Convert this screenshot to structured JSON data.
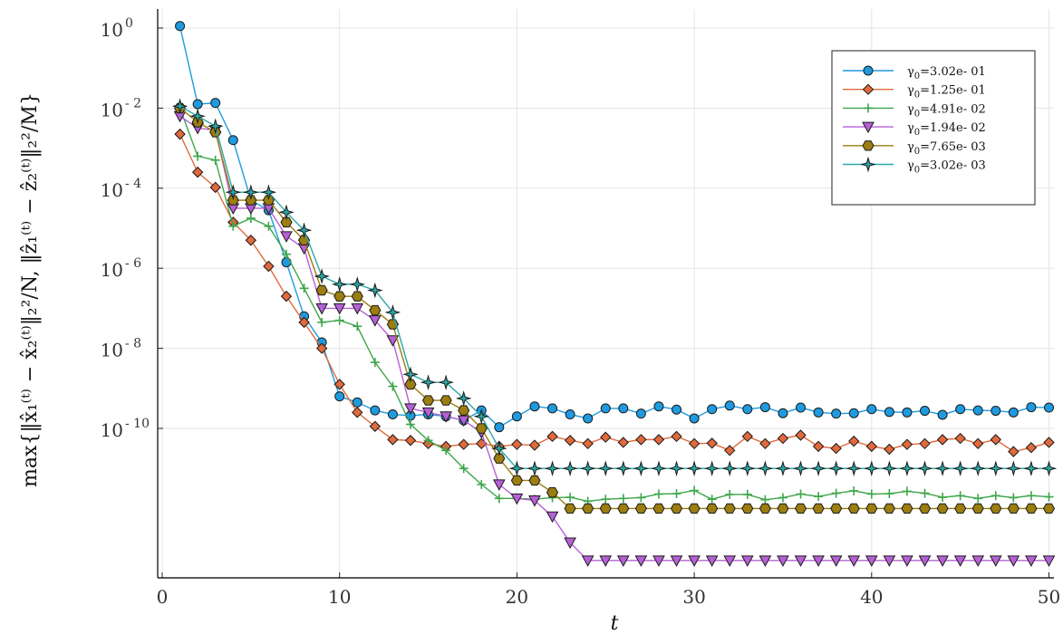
{
  "chart_data": {
    "type": "scatter",
    "xlabel": "t",
    "ylabel": "max{‖x̂₁⁽ᵗ⁾ − x̂₂⁽ᵗ⁾‖₂²/N, ‖ẑ₁⁽ᵗ⁾ − ẑ₂⁽ᵗ⁾‖₂²/M}",
    "xlim": [
      0,
      51
    ],
    "ylim_log10": [
      -14.5,
      0.5
    ],
    "y_scale": "log",
    "grid": true,
    "legend_position": "top-right",
    "x_ticks": [
      0,
      10,
      20,
      30,
      40,
      50
    ],
    "y_ticks": [
      {
        "base": "10",
        "exp": "0",
        "log10": 0
      },
      {
        "base": "10",
        "exp": "- 2",
        "log10": -2
      },
      {
        "base": "10",
        "exp": "- 4",
        "log10": -4
      },
      {
        "base": "10",
        "exp": "- 6",
        "log10": -6
      },
      {
        "base": "10",
        "exp": "- 8",
        "log10": -8
      },
      {
        "base": "10",
        "exp": "- 10",
        "log10": -10
      }
    ],
    "x": [
      1,
      2,
      3,
      4,
      5,
      6,
      7,
      8,
      9,
      10,
      11,
      12,
      13,
      14,
      15,
      16,
      17,
      18,
      19,
      20,
      21,
      22,
      23,
      24,
      25,
      26,
      27,
      28,
      29,
      30,
      31,
      32,
      33,
      34,
      35,
      36,
      37,
      38,
      39,
      40,
      41,
      42,
      43,
      44,
      45,
      46,
      47,
      48,
      49,
      50
    ],
    "series": [
      {
        "name": "γ₀=3.02e- 01",
        "color": "#1e9be0",
        "marker": "circle",
        "log10_values": [
          0.05,
          -1.9,
          -1.87,
          -2.8,
          -4.3,
          -4.55,
          -5.85,
          -7.2,
          -7.85,
          -9.2,
          -9.35,
          -9.55,
          -9.65,
          -9.68,
          -9.65,
          -9.7,
          -9.8,
          -9.55,
          -9.97,
          -9.7,
          -9.45,
          -9.5,
          -9.65,
          -9.75,
          -9.5,
          -9.5,
          -9.63,
          -9.45,
          -9.53,
          -9.75,
          -9.52,
          -9.43,
          -9.52,
          -9.47,
          -9.62,
          -9.48,
          -9.6,
          -9.63,
          -9.62,
          -9.52,
          -9.59,
          -9.6,
          -9.56,
          -9.66,
          -9.52,
          -9.55,
          -9.56,
          -9.6,
          -9.47,
          -9.48
        ]
      },
      {
        "name": "γ₀=1.25e- 01",
        "color": "#e06a3c",
        "marker": "diamond",
        "log10_values": [
          -2.65,
          -3.6,
          -3.98,
          -4.85,
          -5.3,
          -5.95,
          -6.7,
          -7.35,
          -8.0,
          -8.9,
          -9.6,
          -9.95,
          -10.28,
          -10.3,
          -10.38,
          -10.45,
          -10.4,
          -10.38,
          -10.45,
          -10.4,
          -10.42,
          -10.2,
          -10.3,
          -10.38,
          -10.22,
          -10.35,
          -10.28,
          -10.28,
          -10.2,
          -10.38,
          -10.37,
          -10.55,
          -10.2,
          -10.38,
          -10.25,
          -10.17,
          -10.45,
          -10.5,
          -10.32,
          -10.45,
          -10.52,
          -10.4,
          -10.38,
          -10.28,
          -10.25,
          -10.38,
          -10.28,
          -10.58,
          -10.48,
          -10.35
        ]
      },
      {
        "name": "γ₀=4.91e- 02",
        "color": "#3ea64a",
        "marker": "plus",
        "log10_values": [
          -2.0,
          -3.2,
          -3.3,
          -4.95,
          -4.75,
          -4.95,
          -5.65,
          -6.5,
          -7.35,
          -7.3,
          -7.45,
          -8.35,
          -8.95,
          -9.9,
          -10.3,
          -10.55,
          -11.0,
          -11.4,
          -11.75,
          -11.75,
          -11.77,
          -11.73,
          -11.72,
          -11.82,
          -11.77,
          -11.75,
          -11.73,
          -11.64,
          -11.63,
          -11.55,
          -11.77,
          -11.65,
          -11.65,
          -11.78,
          -11.73,
          -11.64,
          -11.7,
          -11.62,
          -11.56,
          -11.64,
          -11.63,
          -11.57,
          -11.62,
          -11.72,
          -11.68,
          -11.75,
          -11.68,
          -11.73,
          -11.68,
          -11.71
        ]
      },
      {
        "name": "γ₀=1.94e- 02",
        "color": "#b660d6",
        "marker": "triangle-down",
        "log10_values": [
          -2.2,
          -2.5,
          -2.55,
          -4.5,
          -4.5,
          -4.5,
          -5.2,
          -5.5,
          -7.0,
          -7.0,
          -7.0,
          -7.3,
          -7.8,
          -9.5,
          -9.6,
          -9.7,
          -9.8,
          -10.1,
          -11.4,
          -11.75,
          -11.8,
          -12.2,
          -12.85,
          -13.3,
          -13.3,
          -13.3,
          -13.3,
          -13.3,
          -13.3,
          -13.3,
          -13.3,
          -13.3,
          -13.3,
          -13.3,
          -13.3,
          -13.3,
          -13.3,
          -13.3,
          -13.3,
          -13.3,
          -13.3,
          -13.3,
          -13.3,
          -13.3,
          -13.3,
          -13.3,
          -13.3,
          -13.3,
          -13.3,
          -13.3
        ]
      },
      {
        "name": "γ₀=7.65e- 03",
        "color": "#9b7d10",
        "marker": "hexagon",
        "log10_values": [
          -2.0,
          -2.35,
          -2.6,
          -4.3,
          -4.3,
          -4.3,
          -4.85,
          -5.3,
          -6.55,
          -6.7,
          -6.7,
          -7.05,
          -7.4,
          -8.9,
          -9.3,
          -9.3,
          -9.55,
          -10.0,
          -10.75,
          -11.3,
          -11.3,
          -11.6,
          -12.0,
          -12.0,
          -12.0,
          -12.0,
          -12.0,
          -12.0,
          -12.0,
          -12.0,
          -12.0,
          -12.0,
          -12.0,
          -12.0,
          -12.0,
          -12.0,
          -12.0,
          -12.0,
          -12.0,
          -12.0,
          -12.0,
          -12.0,
          -12.0,
          -12.0,
          -12.0,
          -12.0,
          -12.0,
          -12.0,
          -12.0,
          -12.0
        ]
      },
      {
        "name": "γ₀=3.02e- 03",
        "color": "#2aa7a7",
        "marker": "star4",
        "log10_values": [
          -1.95,
          -2.2,
          -2.45,
          -4.1,
          -4.1,
          -4.1,
          -4.6,
          -5.05,
          -6.2,
          -6.4,
          -6.4,
          -6.55,
          -7.1,
          -8.65,
          -8.85,
          -8.85,
          -9.25,
          -9.7,
          -10.5,
          -11.0,
          -11.0,
          -11.0,
          -11.0,
          -11.0,
          -11.0,
          -11.0,
          -11.0,
          -11.0,
          -11.0,
          -11.0,
          -11.0,
          -11.0,
          -11.0,
          -11.0,
          -11.0,
          -11.0,
          -11.0,
          -11.0,
          -11.0,
          -11.0,
          -11.0,
          -11.0,
          -11.0,
          -11.0,
          -11.0,
          -11.0,
          -11.0,
          -11.0,
          -11.0,
          -11.0
        ]
      }
    ]
  },
  "legend": {
    "entries": [
      {
        "prefix": "γ",
        "sub": "0",
        "text": "=3.02e- 01"
      },
      {
        "prefix": "γ",
        "sub": "0",
        "text": "=1.25e- 01"
      },
      {
        "prefix": "γ",
        "sub": "0",
        "text": "=4.91e- 02"
      },
      {
        "prefix": "γ",
        "sub": "0",
        "text": "=1.94e- 02"
      },
      {
        "prefix": "γ",
        "sub": "0",
        "text": "=7.65e- 03"
      },
      {
        "prefix": "γ",
        "sub": "0",
        "text": "=3.02e- 03"
      }
    ]
  }
}
